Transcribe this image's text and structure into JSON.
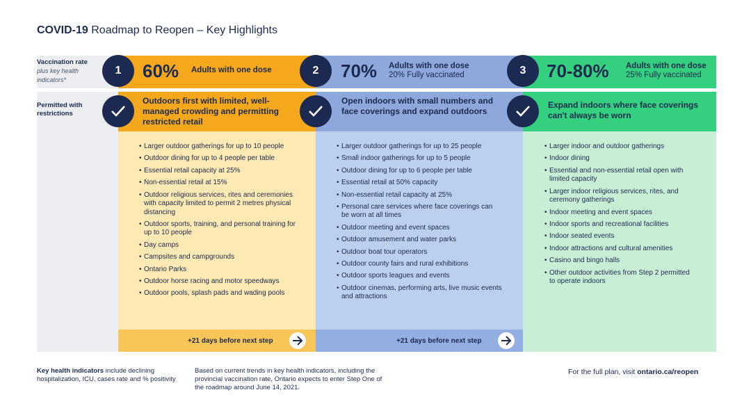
{
  "title": {
    "bold": "COVID-19",
    "rest": "Roadmap to Reopen – Key Highlights"
  },
  "row_labels": {
    "vaccination_bold": "Vaccination rate",
    "vaccination_italic": "plus key health indicators*",
    "permitted": "Permitted with restrictions"
  },
  "steps": [
    {
      "number": "1",
      "percent": "60%",
      "dose_line1": "Adults with one dose",
      "dose_line2": "",
      "heading": "Outdoors first with limited, well-managed crowding and permitting restricted retail",
      "items": [
        "Larger outdoor gatherings for up to 10 people",
        "Outdoor dining for up to 4 people per table",
        "Essential retail capacity at 25%",
        "Non-essential retail at 15%",
        "Outdoor religious services, rites and ceremonies with capacity limited to permit 2 metres physical distancing",
        "Outdoor sports, training, and personal training for up to 10 people",
        "Day camps",
        "Campsites and campgrounds",
        "Ontario Parks",
        "Outdoor horse racing and motor speedways",
        "Outdoor pools, splash pads and wading pools"
      ],
      "next_step": "+21 days before next step"
    },
    {
      "number": "2",
      "percent": "70%",
      "dose_line1": "Adults with one dose",
      "dose_line2": "20% Fully vaccinated",
      "heading": "Open indoors with small numbers and face coverings and expand outdoors",
      "items": [
        "Larger outdoor gatherings for up to 25 people",
        "Small indoor gatherings for up to 5 people",
        "Outdoor dining for up to 6 people per table",
        "Essential retail at 50% capacity",
        "Non-essential retail capacity at 25%",
        "Personal care services where face coverings can be worn at all times",
        "Outdoor meeting and event spaces",
        "Outdoor amusement and water parks",
        "Outdoor boat tour operators",
        "Outdoor county fairs and rural exhibitions",
        "Outdoor sports leagues and events",
        "Outdoor cinemas, performing arts, live music events and attractions"
      ],
      "next_step": "+21 days before next step"
    },
    {
      "number": "3",
      "percent": "70-80%",
      "dose_line1": "Adults with one dose",
      "dose_line2": "25% Fully vaccinated",
      "heading": "Expand indoors where face coverings can't always be worn",
      "items": [
        "Larger indoor and outdoor gatherings",
        "Indoor dining",
        "Essential and non-essential retail open with limited capacity",
        "Larger indoor religious services, rites, and ceremony gatherings",
        "Indoor meeting and event spaces",
        "Indoor sports and recreational facilities",
        "Indoor seated events",
        "Indoor attractions and cultural amenities",
        "Casino and bingo halls",
        "Other outdoor activities from Step 2 permitted to operate indoors"
      ],
      "next_step": ""
    }
  ],
  "footer": {
    "indicators_bold": "Key health indicators",
    "indicators_rest": "include declining hospitalization, ICU, cases rate and % positivity",
    "note": "Based on current trends in key health indicators, including the provincial vaccination rate, Ontario expects to enter Step One of the roadmap around June 14, 2021.",
    "plan_text": "For the full plan, visit",
    "plan_link": "ontario.ca/reopen"
  },
  "colors": {
    "step1": "#f6a81d",
    "step1_body": "#fde9b3",
    "step2": "#8ea8db",
    "step2_body": "#bccff0",
    "step3": "#35d07f",
    "step3_body": "#c8efd5",
    "navy": "#1c2a52"
  },
  "icons": {
    "step_check": "check-icon",
    "next": "arrow-right-icon"
  }
}
